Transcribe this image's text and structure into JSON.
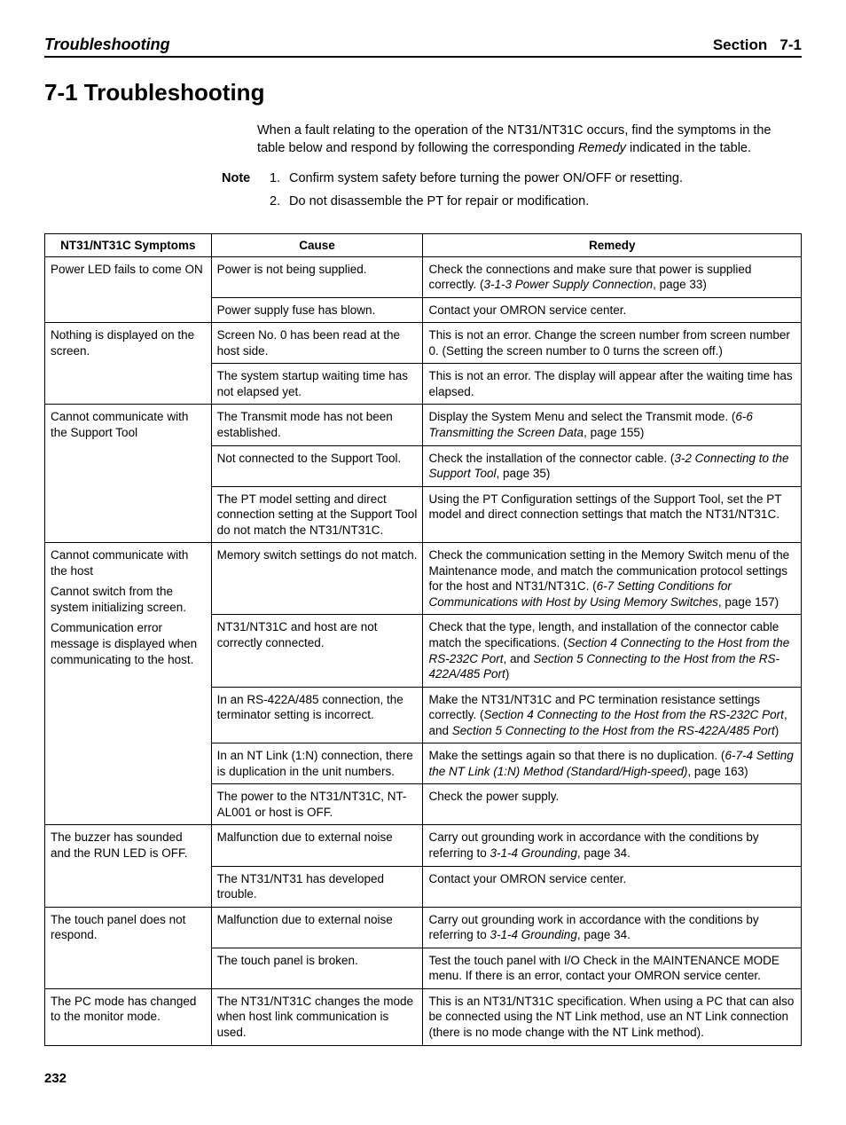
{
  "header": {
    "left": "Troubleshooting",
    "right_label": "Section",
    "right_num": "7-1"
  },
  "title": "7-1    Troubleshooting",
  "intro": {
    "p1a": "When a fault relating to the operation of the NT31/NT31C occurs, find the symptoms in the table below and respond by following the corresponding ",
    "p1b": "Remedy",
    "p1c": " indicated in the table."
  },
  "note": {
    "label": "Note",
    "items": [
      "Confirm system safety before turning the power ON/OFF or resetting.",
      "Do not disassemble the PT for repair or modification."
    ]
  },
  "table": {
    "headers": [
      "NT31/NT31C Symptoms",
      "Cause",
      "Remedy"
    ],
    "groups": [
      {
        "symptom": "Power LED fails to come ON",
        "rows": [
          {
            "cause": "Power is not being supplied.",
            "remedy_parts": [
              {
                "t": "Check the connections and make sure that power is supplied correctly. ("
              },
              {
                "t": "3-1-3 Power Supply Connection",
                "i": true
              },
              {
                "t": ", page 33)"
              }
            ]
          },
          {
            "cause": "Power supply fuse has blown.",
            "remedy_parts": [
              {
                "t": "Contact your OMRON service center."
              }
            ]
          }
        ]
      },
      {
        "symptom": "Nothing is displayed on the screen.",
        "rows": [
          {
            "cause": "Screen No. 0 has been read at the host side.",
            "remedy_parts": [
              {
                "t": "This is not an error. Change the screen number from screen number 0. (Setting the screen number to 0 turns the screen off.)"
              }
            ]
          },
          {
            "cause": "The system startup waiting time has not elapsed yet.",
            "remedy_parts": [
              {
                "t": "This is not an error. The display will appear after the waiting time has elapsed."
              }
            ]
          }
        ]
      },
      {
        "symptom": "Cannot communicate with the Support Tool",
        "rows": [
          {
            "cause": "The Transmit mode has not been established.",
            "remedy_parts": [
              {
                "t": "Display the System Menu and select the Transmit mode. ("
              },
              {
                "t": "6-6 Transmitting the Screen Data",
                "i": true
              },
              {
                "t": ", page 155)"
              }
            ]
          },
          {
            "cause": "Not connected to the Support Tool.",
            "remedy_parts": [
              {
                "t": "Check the installation of the connector cable. ("
              },
              {
                "t": "3-2 Connecting to the Support Tool",
                "i": true
              },
              {
                "t": ", page 35)"
              }
            ]
          },
          {
            "cause": "The PT model setting and direct connection setting at the Support Tool do not match the NT31/NT31C.",
            "remedy_parts": [
              {
                "t": "Using the PT Configuration settings of the Support Tool, set the PT model and direct connection settings that match the NT31/NT31C."
              }
            ]
          }
        ]
      },
      {
        "symptom": "Cannot communicate with the host\nCannot switch from the system initializing screen.\nCommunication error message is displayed when communicating to the host.",
        "rows": [
          {
            "cause": "Memory switch settings do not match.",
            "remedy_parts": [
              {
                "t": "Check the communication setting in the Memory Switch menu of the Maintenance mode, and match the communication protocol settings for the host and NT31/NT31C. ("
              },
              {
                "t": "6-7 Setting Conditions for Communications with Host by Using Memory Switches",
                "i": true
              },
              {
                "t": ", page 157)"
              }
            ]
          },
          {
            "cause": "NT31/NT31C and host are not correctly connected.",
            "remedy_parts": [
              {
                "t": "Check that the type, length, and installation of the connector cable match the specifications. ("
              },
              {
                "t": "Section 4 Connecting to the Host from the RS-232C Port",
                "i": true
              },
              {
                "t": ", and "
              },
              {
                "t": "Section 5 Connecting to the Host from the RS-422A/485 Port",
                "i": true
              },
              {
                "t": ")"
              }
            ]
          },
          {
            "cause": "In an RS-422A/485 connection, the terminator setting is incorrect.",
            "remedy_parts": [
              {
                "t": "Make the NT31/NT31C and PC termination resistance settings correctly. ("
              },
              {
                "t": "Section 4 Connecting to the Host from the RS-232C Port",
                "i": true
              },
              {
                "t": ", and "
              },
              {
                "t": "Section 5 Connecting to the Host from the RS-422A/485 Port",
                "i": true
              },
              {
                "t": ")"
              }
            ]
          },
          {
            "cause": "In an NT Link (1:N) connection, there is duplication in the unit numbers.",
            "remedy_parts": [
              {
                "t": "Make the settings again so that there is no duplication. ("
              },
              {
                "t": "6-7-4 Setting the NT Link (1:N) Method (Standard/High-speed)",
                "i": true
              },
              {
                "t": ", page 163)"
              }
            ]
          },
          {
            "cause": "The power to the NT31/NT31C, NT-AL001 or host is OFF.",
            "remedy_parts": [
              {
                "t": "Check the power supply."
              }
            ]
          }
        ]
      },
      {
        "symptom": "The buzzer has sounded and the RUN LED is OFF.",
        "rows": [
          {
            "cause": "Malfunction due to external noise",
            "remedy_parts": [
              {
                "t": "Carry out grounding work in accordance with the conditions by referring to "
              },
              {
                "t": "3-1-4 Grounding",
                "i": true
              },
              {
                "t": ", page 34."
              }
            ]
          },
          {
            "cause": "The NT31/NT31 has developed trouble.",
            "remedy_parts": [
              {
                "t": "Contact your OMRON service center."
              }
            ]
          }
        ]
      },
      {
        "symptom": "The touch panel does not respond.",
        "rows": [
          {
            "cause": "Malfunction due to external noise",
            "remedy_parts": [
              {
                "t": "Carry out grounding work in accordance with the conditions by referring to "
              },
              {
                "t": "3-1-4 Grounding",
                "i": true
              },
              {
                "t": ", page 34."
              }
            ]
          },
          {
            "cause": "The touch panel is broken.",
            "remedy_parts": [
              {
                "t": "Test the touch panel with I/O Check in the MAINTENANCE MODE menu. If there is an error, contact your OMRON service center."
              }
            ]
          }
        ]
      },
      {
        "symptom": "The PC mode has changed to the monitor mode.",
        "rows": [
          {
            "cause": "The NT31/NT31C changes the mode when host link communication is used.",
            "remedy_parts": [
              {
                "t": "This is an NT31/NT31C specification. When using a PC that can also be connected using the NT Link method, use an NT Link connection (there is no mode change with the NT Link method)."
              }
            ]
          }
        ]
      }
    ]
  },
  "page_number": "232"
}
